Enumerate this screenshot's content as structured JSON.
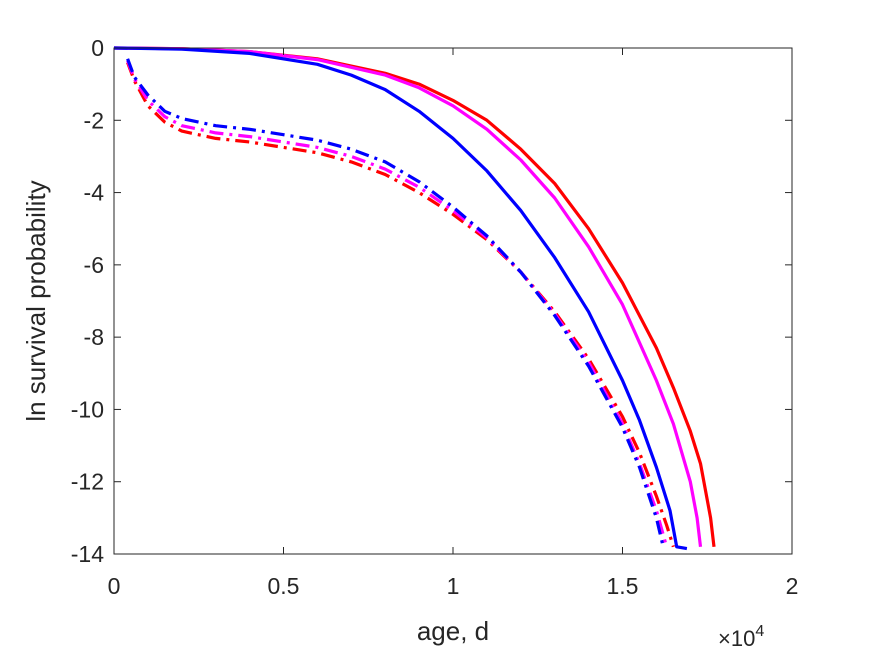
{
  "chart_data": {
    "type": "line",
    "title": "",
    "xlabel": "age, d",
    "ylabel": "ln survival probability",
    "x_exponent_label": {
      "base": "×10",
      "exp": "4"
    },
    "xlim": [
      0,
      2
    ],
    "ylim": [
      -14,
      0
    ],
    "xticks": [
      0,
      0.5,
      1,
      1.5,
      2
    ],
    "xtick_labels": [
      "0",
      "0.5",
      "1",
      "1.5",
      "2"
    ],
    "yticks": [
      0,
      -2,
      -4,
      -6,
      -8,
      -10,
      -12,
      -14
    ],
    "ytick_labels": [
      "0",
      "-2",
      "-4",
      "-6",
      "-8",
      "-10",
      "-12",
      "-14"
    ],
    "grid": false,
    "series": [
      {
        "color": "#ff0000",
        "style": "solid",
        "x": [
          0,
          0.2,
          0.4,
          0.6,
          0.8,
          0.9,
          1.0,
          1.1,
          1.2,
          1.3,
          1.4,
          1.5,
          1.6,
          1.65,
          1.7,
          1.73,
          1.76,
          1.77
        ],
        "y": [
          0,
          -0.02,
          -0.1,
          -0.3,
          -0.7,
          -1.0,
          -1.45,
          -2.0,
          -2.8,
          -3.75,
          -5.0,
          -6.5,
          -8.3,
          -9.4,
          -10.6,
          -11.5,
          -13.0,
          -13.8
        ]
      },
      {
        "color": "#ff00ff",
        "style": "solid",
        "x": [
          0,
          0.2,
          0.4,
          0.6,
          0.8,
          0.9,
          1.0,
          1.1,
          1.2,
          1.3,
          1.4,
          1.5,
          1.6,
          1.65,
          1.7,
          1.72,
          1.73
        ],
        "y": [
          0,
          -0.02,
          -0.1,
          -0.32,
          -0.75,
          -1.1,
          -1.6,
          -2.25,
          -3.1,
          -4.15,
          -5.5,
          -7.1,
          -9.2,
          -10.4,
          -12.0,
          -13.0,
          -13.8
        ]
      },
      {
        "color": "#0000ff",
        "style": "solid",
        "x": [
          0,
          0.2,
          0.4,
          0.6,
          0.7,
          0.8,
          0.9,
          1.0,
          1.1,
          1.2,
          1.3,
          1.4,
          1.5,
          1.55,
          1.6,
          1.64,
          1.66,
          1.69
        ],
        "y": [
          0,
          -0.03,
          -0.15,
          -0.45,
          -0.75,
          -1.15,
          -1.75,
          -2.5,
          -3.4,
          -4.5,
          -5.8,
          -7.3,
          -9.2,
          -10.3,
          -11.6,
          -12.8,
          -13.8,
          -13.85
        ]
      },
      {
        "color": "#ff0000",
        "style": "dashdot",
        "x": [
          0.04,
          0.06,
          0.1,
          0.15,
          0.2,
          0.3,
          0.4,
          0.5,
          0.6,
          0.7,
          0.8,
          0.9,
          1.0,
          1.1,
          1.2,
          1.3,
          1.4,
          1.5,
          1.55,
          1.6,
          1.63,
          1.65
        ],
        "y": [
          -0.4,
          -0.9,
          -1.6,
          -2.05,
          -2.3,
          -2.5,
          -2.6,
          -2.75,
          -2.9,
          -3.15,
          -3.5,
          -4.0,
          -4.6,
          -5.3,
          -6.2,
          -7.3,
          -8.6,
          -10.2,
          -11.2,
          -12.4,
          -13.2,
          -13.8
        ]
      },
      {
        "color": "#ff00ff",
        "style": "dashdot",
        "x": [
          0.04,
          0.06,
          0.1,
          0.15,
          0.2,
          0.3,
          0.4,
          0.5,
          0.6,
          0.7,
          0.8,
          0.9,
          1.0,
          1.1,
          1.2,
          1.3,
          1.4,
          1.5,
          1.55,
          1.6,
          1.63
        ],
        "y": [
          -0.35,
          -0.85,
          -1.45,
          -1.9,
          -2.15,
          -2.35,
          -2.45,
          -2.6,
          -2.75,
          -3.0,
          -3.35,
          -3.85,
          -4.5,
          -5.25,
          -6.2,
          -7.35,
          -8.7,
          -10.4,
          -11.5,
          -12.8,
          -13.8
        ]
      },
      {
        "color": "#0000ff",
        "style": "dashdot",
        "x": [
          0.04,
          0.06,
          0.1,
          0.15,
          0.2,
          0.3,
          0.4,
          0.5,
          0.6,
          0.7,
          0.8,
          0.9,
          1.0,
          1.1,
          1.2,
          1.3,
          1.4,
          1.5,
          1.55,
          1.6,
          1.62
        ],
        "y": [
          -0.3,
          -0.8,
          -1.3,
          -1.75,
          -1.95,
          -2.15,
          -2.25,
          -2.4,
          -2.55,
          -2.8,
          -3.15,
          -3.7,
          -4.4,
          -5.2,
          -6.2,
          -7.4,
          -8.8,
          -10.5,
          -11.6,
          -13.0,
          -13.8
        ]
      }
    ]
  }
}
